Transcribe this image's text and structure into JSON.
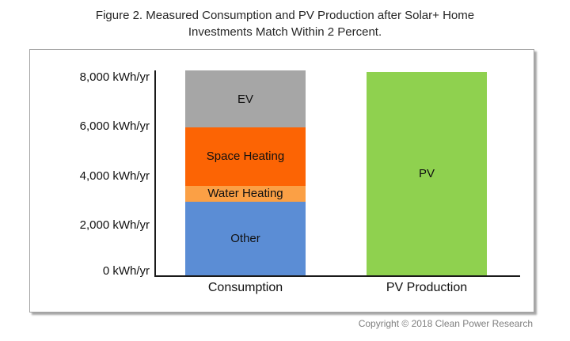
{
  "title": {
    "line1": "Figure 2. Measured Consumption and PV Production after Solar+ Home",
    "line2": "Investments Match Within 2 Percent."
  },
  "footer": {
    "copyright": "Copyright © 2018 Clean Power Research"
  },
  "chart_data": {
    "type": "bar",
    "subtype": "stacked",
    "title": "Figure 2. Measured Consumption and PV Production after Solar+ Home Investments Match Within 2 Percent.",
    "unit": "kWh/yr",
    "categories": [
      "Consumption",
      "PV Production"
    ],
    "series": [
      {
        "name": "Other",
        "values": [
          2980,
          0
        ],
        "color": "#5b8dd5"
      },
      {
        "name": "Water Heating",
        "values": [
          640,
          0
        ],
        "color": "#fba045"
      },
      {
        "name": "Space Heating",
        "values": [
          2370,
          0
        ],
        "color": "#fc6404"
      },
      {
        "name": "EV",
        "values": [
          2290,
          0
        ],
        "color": "#a6a6a6"
      },
      {
        "name": "PV",
        "values": [
          0,
          8220
        ],
        "color": "#8fd14f"
      }
    ],
    "totals": {
      "Consumption": 8280,
      "PV Production": 8220
    },
    "yticks": [
      0,
      2000,
      4000,
      6000,
      8000
    ],
    "ytick_labels": [
      "0 kWh/yr",
      "2,000 kWh/yr",
      "4,000 kWh/yr",
      "6,000 kWh/yr",
      "8,000 kWh/yr"
    ],
    "ylim": [
      0,
      8320
    ],
    "xlabel": "",
    "ylabel": "",
    "grid": false,
    "legend": "none",
    "axis_color": "#1a1a1a"
  }
}
